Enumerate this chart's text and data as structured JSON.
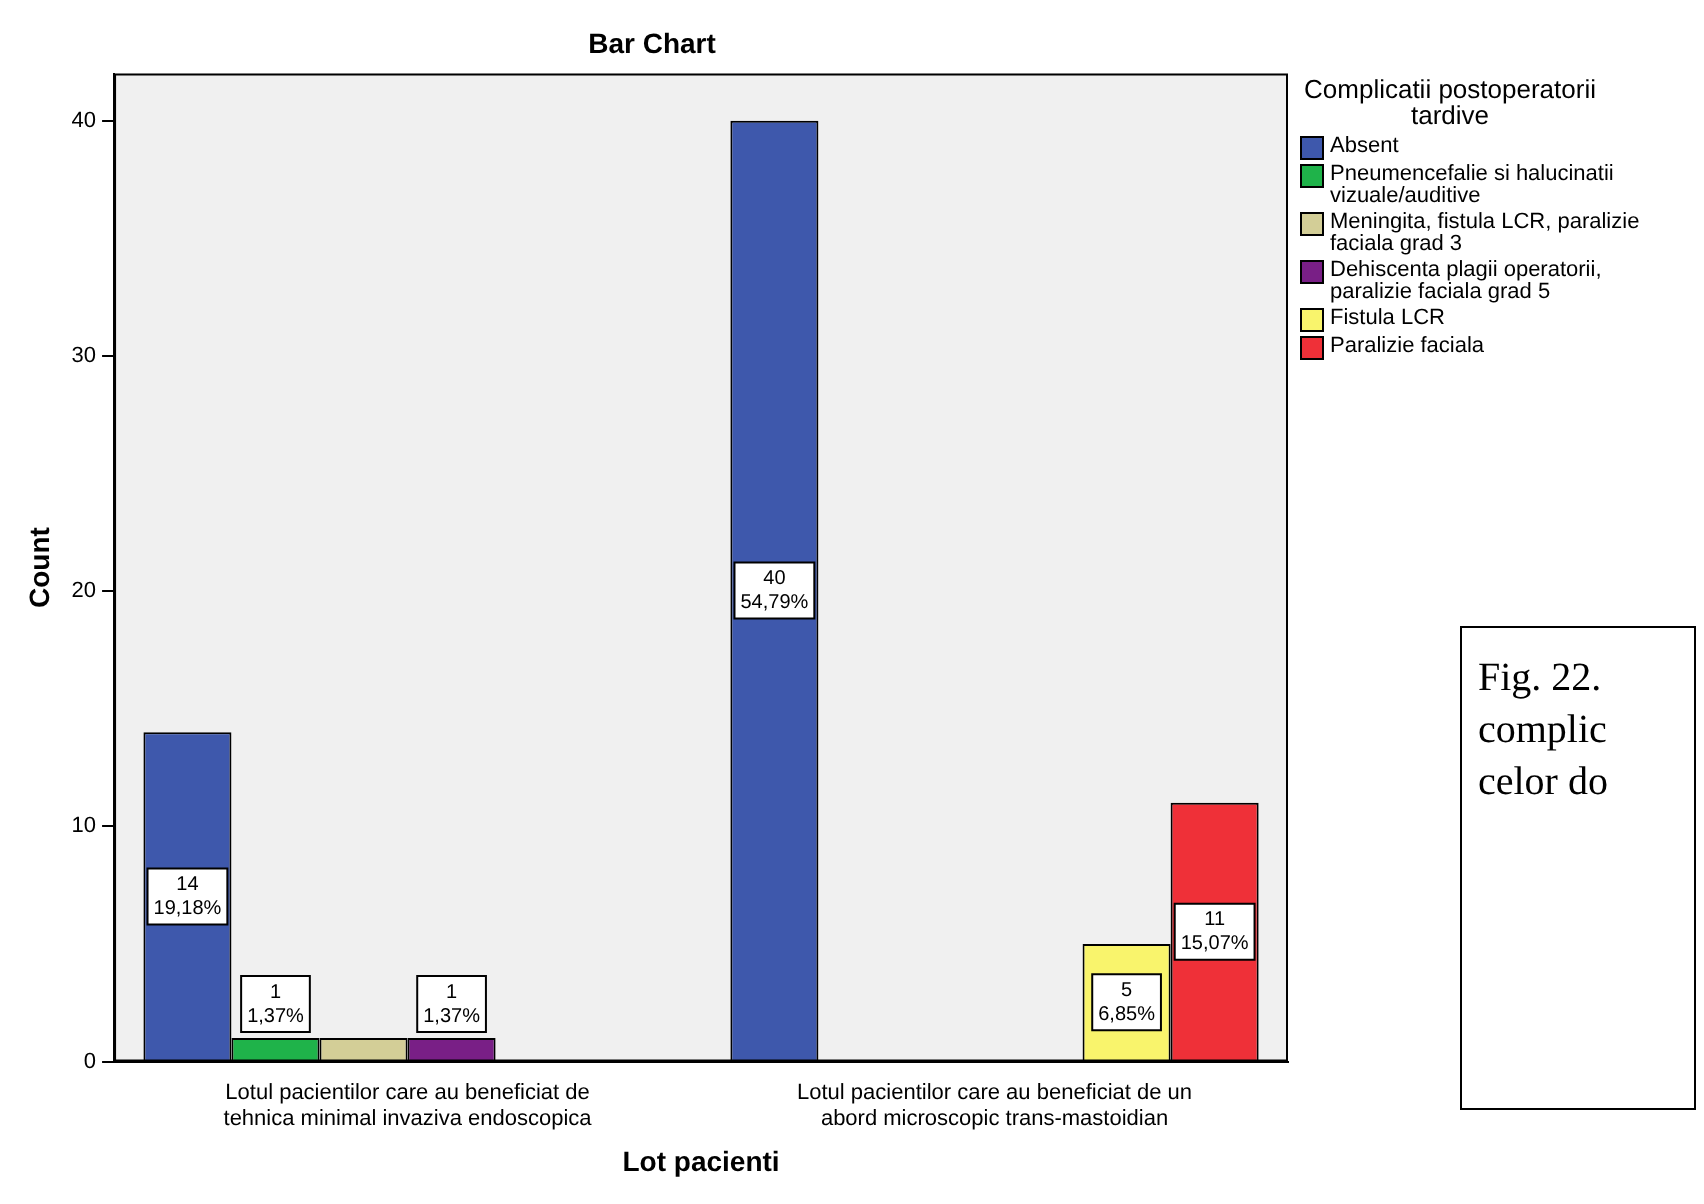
{
  "chart_data": {
    "type": "bar",
    "title": "Bar Chart",
    "xlabel": "Lot pacienti",
    "ylabel": "Count",
    "legend_title": "Complicatii postoperatorii tardive",
    "categories": [
      "Lotul pacientilor care au beneficiat de tehnica minimal invaziva endoscopica",
      "Lotul pacientilor care au beneficiat de un abord microscopic trans-mastoidian"
    ],
    "series": [
      {
        "name": "Absent",
        "color": "#3e58ac",
        "values": [
          14,
          40
        ],
        "value_labels": [
          "14\n19,18%",
          "40\n54,79%"
        ]
      },
      {
        "name": "Pneumencefalie si halucinatii vizuale/auditive",
        "color": "#1fb34a",
        "values": [
          1,
          null
        ],
        "value_labels": [
          "1\n1,37%",
          null
        ]
      },
      {
        "name": "Meningita, fistula LCR, paralizie faciala grad 3",
        "color": "#d3ce97",
        "values": [
          1,
          null
        ],
        "value_labels": [
          null,
          null
        ]
      },
      {
        "name": "Dehiscenta plagii operatorii, paralizie faciala grad 5",
        "color": "#791f86",
        "values": [
          1,
          null
        ],
        "value_labels": [
          "1\n1,37%",
          null
        ]
      },
      {
        "name": "Fistula LCR",
        "color": "#f9f46c",
        "values": [
          null,
          5
        ],
        "value_labels": [
          null,
          "5\n6,85%"
        ]
      },
      {
        "name": "Paralizie faciala",
        "color": "#ef3038",
        "values": [
          null,
          11
        ],
        "value_labels": [
          null,
          "11\n15,07%"
        ]
      }
    ],
    "ylim": [
      0,
      42
    ],
    "yticks": [
      0,
      10,
      20,
      30,
      40
    ],
    "grid": false,
    "legend": "right",
    "annotations": [
      "Fig. 22.\ncomplic\ncelor do"
    ]
  }
}
